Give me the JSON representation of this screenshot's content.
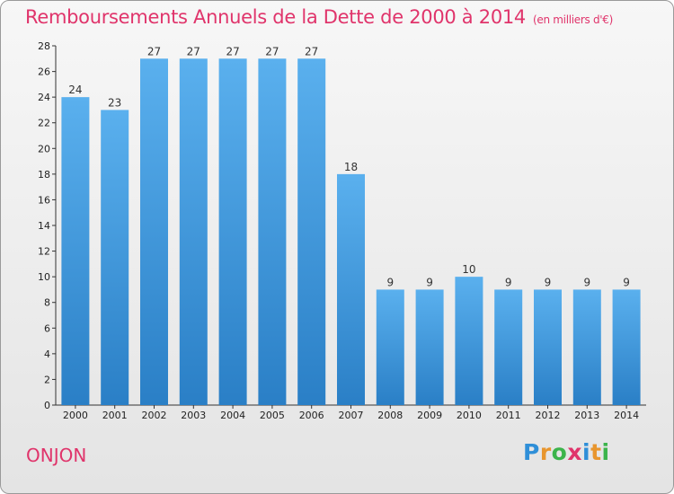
{
  "title": "Remboursements Annuels de la Dette de 2000 à 2014",
  "subtitle": "(en milliers d'€)",
  "commune": "ONJON",
  "logo": {
    "letters": [
      "P",
      "r",
      "o",
      "x",
      "i",
      "t",
      "i"
    ],
    "colors": [
      "#2f8fd8",
      "#e8962e",
      "#3cb44b",
      "#e0346b",
      "#2f8fd8",
      "#e8962e",
      "#3cb44b"
    ]
  },
  "colors": {
    "bar_light": "#5ab0ee",
    "bar_dark": "#2a7fc6",
    "accent": "#e0346b"
  },
  "chart_data": {
    "type": "bar",
    "title": "Remboursements Annuels de la Dette de 2000 à 2014",
    "xlabel": "",
    "ylabel": "",
    "categories": [
      "2000",
      "2001",
      "2002",
      "2003",
      "2004",
      "2005",
      "2006",
      "2007",
      "2008",
      "2009",
      "2010",
      "2011",
      "2012",
      "2013",
      "2014"
    ],
    "values": [
      24,
      23,
      27,
      27,
      27,
      27,
      27,
      18,
      9,
      9,
      10,
      9,
      9,
      9,
      9
    ],
    "ylim": [
      0,
      28
    ],
    "yticks": [
      0,
      2,
      4,
      6,
      8,
      10,
      12,
      14,
      16,
      18,
      20,
      22,
      24,
      26,
      28
    ],
    "grid": false,
    "data_labels": true
  }
}
